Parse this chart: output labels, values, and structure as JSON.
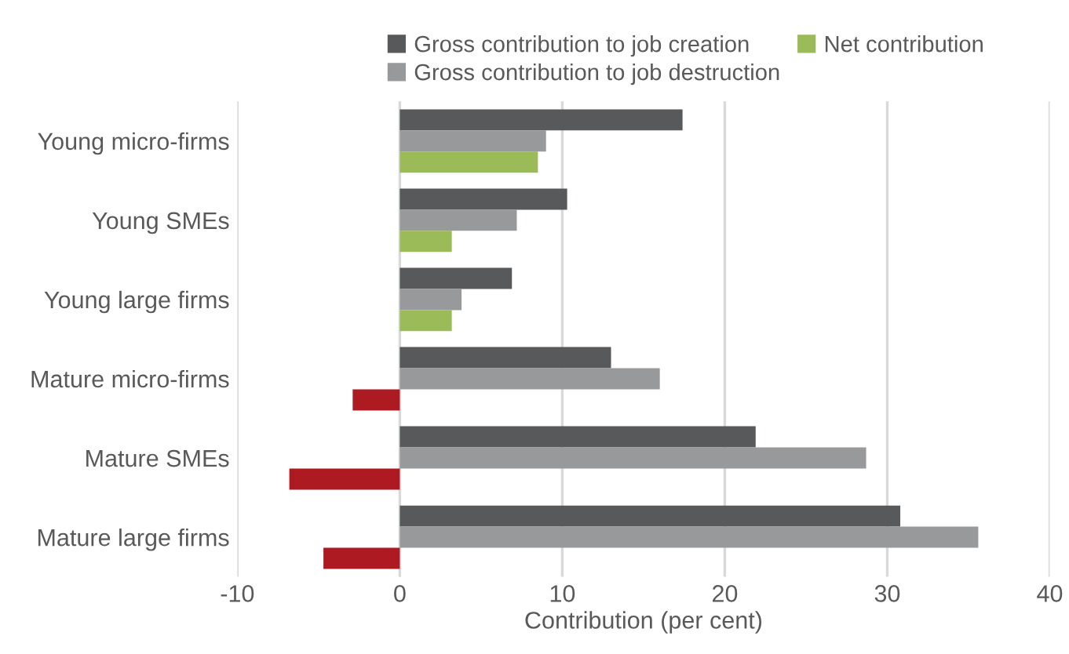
{
  "chart_data": {
    "type": "bar",
    "orientation": "horizontal",
    "xlabel": "Contribution (per cent)",
    "categories": [
      "Young micro-firms",
      "Young SMEs",
      "Young large firms",
      "Mature micro-firms",
      "Mature SMEs",
      "Mature large firms"
    ],
    "series": [
      {
        "name": "Gross contribution to job creation",
        "color": "#58595b",
        "values": [
          17.4,
          10.3,
          6.9,
          13.0,
          21.9,
          30.8
        ]
      },
      {
        "name": "Gross contribution to job destruction",
        "color": "#98999b",
        "values": [
          9.0,
          7.2,
          3.8,
          16.0,
          28.7,
          35.6
        ]
      },
      {
        "name": "Net contribution",
        "color": "#9bbb59",
        "colors": [
          "#9bbb59",
          "#9bbb59",
          "#9bbb59",
          "#ad1a22",
          "#ad1a22",
          "#ad1a22"
        ],
        "values": [
          8.5,
          3.2,
          3.2,
          -2.9,
          -6.8,
          -4.7
        ]
      }
    ],
    "xlim": [
      -10,
      40
    ],
    "xticks": [
      -10,
      0,
      10,
      20,
      30,
      40
    ],
    "grid": "x",
    "legend": "top"
  }
}
